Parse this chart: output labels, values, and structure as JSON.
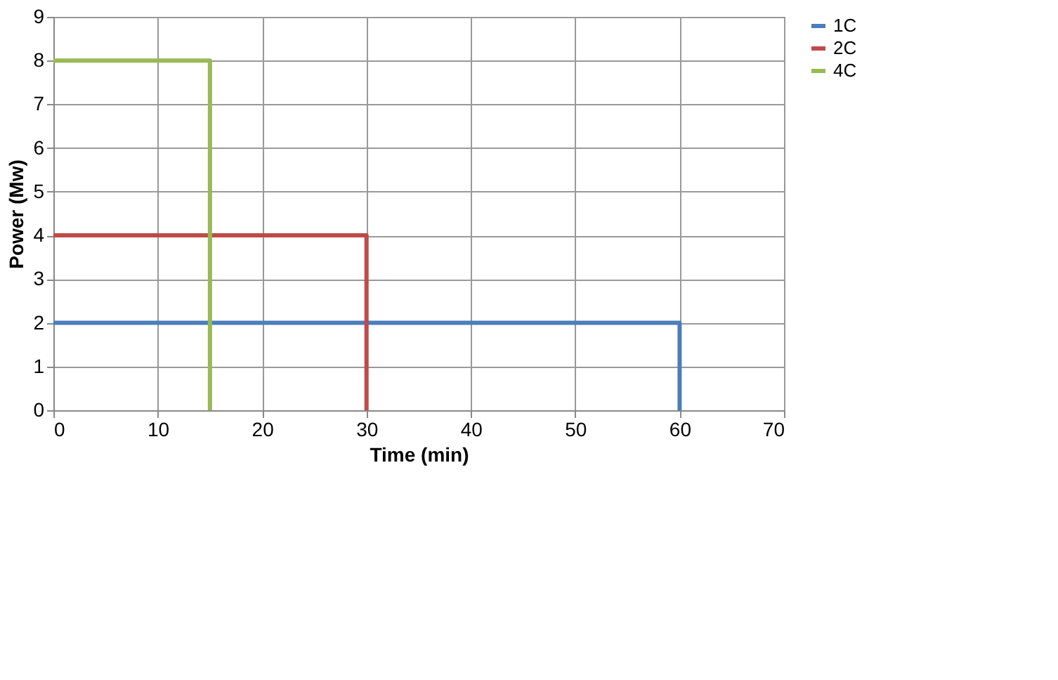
{
  "chart_data": {
    "type": "line",
    "xlabel": "Time (min)",
    "ylabel": "Power (Mw)",
    "series": [
      {
        "name": "1C",
        "color": "#4a7ebb",
        "x": [
          0,
          60,
          60
        ],
        "values": [
          2,
          2,
          0
        ]
      },
      {
        "name": "2C",
        "color": "#be4b48",
        "x": [
          0,
          30,
          30
        ],
        "values": [
          4,
          4,
          0
        ]
      },
      {
        "name": "4C",
        "color": "#98b954",
        "x": [
          0,
          15,
          15
        ],
        "values": [
          8,
          8,
          0
        ]
      }
    ],
    "xlim": [
      0,
      70
    ],
    "xticks": [
      0,
      10,
      20,
      30,
      40,
      50,
      60,
      70
    ],
    "ylim": [
      0,
      9
    ],
    "yticks": [
      0,
      1,
      2,
      3,
      4,
      5,
      6,
      7,
      8,
      9
    ],
    "grid": true,
    "legend": "right",
    "marker": "none",
    "line_style": "solid"
  }
}
